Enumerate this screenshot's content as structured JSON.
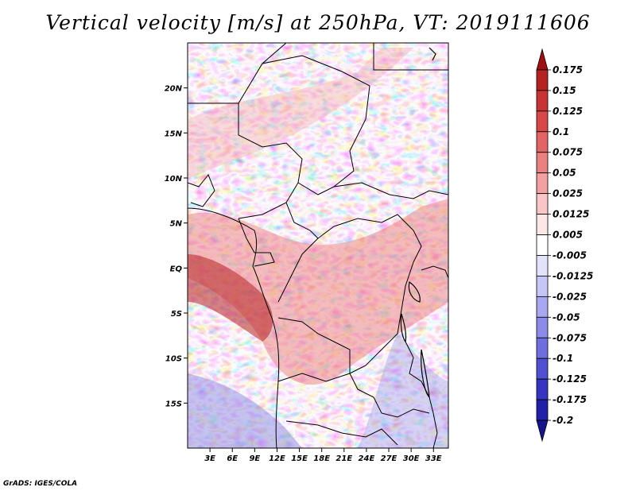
{
  "title": "Vertical velocity [m/s] at 250hPa, VT: 2019111606",
  "credit": "GrADS: IGES/COLA",
  "map": {
    "lon_range": [
      0,
      35
    ],
    "lat_range": [
      -20,
      25
    ],
    "lat_ticks": [
      {
        "value": 20,
        "label": "20N"
      },
      {
        "value": 15,
        "label": "15N"
      },
      {
        "value": 10,
        "label": "10N"
      },
      {
        "value": 5,
        "label": "5N"
      },
      {
        "value": 0,
        "label": "EQ"
      },
      {
        "value": -5,
        "label": "5S"
      },
      {
        "value": -10,
        "label": "10S"
      },
      {
        "value": -15,
        "label": "15S"
      }
    ],
    "lon_ticks": [
      {
        "value": 3,
        "label": "3E"
      },
      {
        "value": 6,
        "label": "6E"
      },
      {
        "value": 9,
        "label": "9E"
      },
      {
        "value": 12,
        "label": "12E"
      },
      {
        "value": 15,
        "label": "15E"
      },
      {
        "value": 18,
        "label": "18E"
      },
      {
        "value": 21,
        "label": "21E"
      },
      {
        "value": 24,
        "label": "24E"
      },
      {
        "value": 27,
        "label": "27E"
      },
      {
        "value": 30,
        "label": "30E"
      },
      {
        "value": 33,
        "label": "33E"
      }
    ]
  },
  "colorbar": {
    "labels": [
      "0.175",
      "0.15",
      "0.125",
      "0.1",
      "0.075",
      "0.05",
      "0.025",
      "0.0125",
      "0.005",
      "-0.005",
      "-0.0125",
      "-0.025",
      "-0.05",
      "-0.075",
      "-0.1",
      "-0.125",
      "-0.175",
      "-0.2"
    ],
    "colors": [
      "#a01010",
      "#b52222",
      "#c83434",
      "#d84848",
      "#e26464",
      "#ea8080",
      "#f2a0a0",
      "#f8c6c6",
      "#fde6e6",
      "#ffffff",
      "#e2e2fb",
      "#c6c6f6",
      "#a8a8f0",
      "#8c8ce8",
      "#6e6ede",
      "#5050d2",
      "#3535c2",
      "#2020a8",
      "#14148c"
    ]
  }
}
